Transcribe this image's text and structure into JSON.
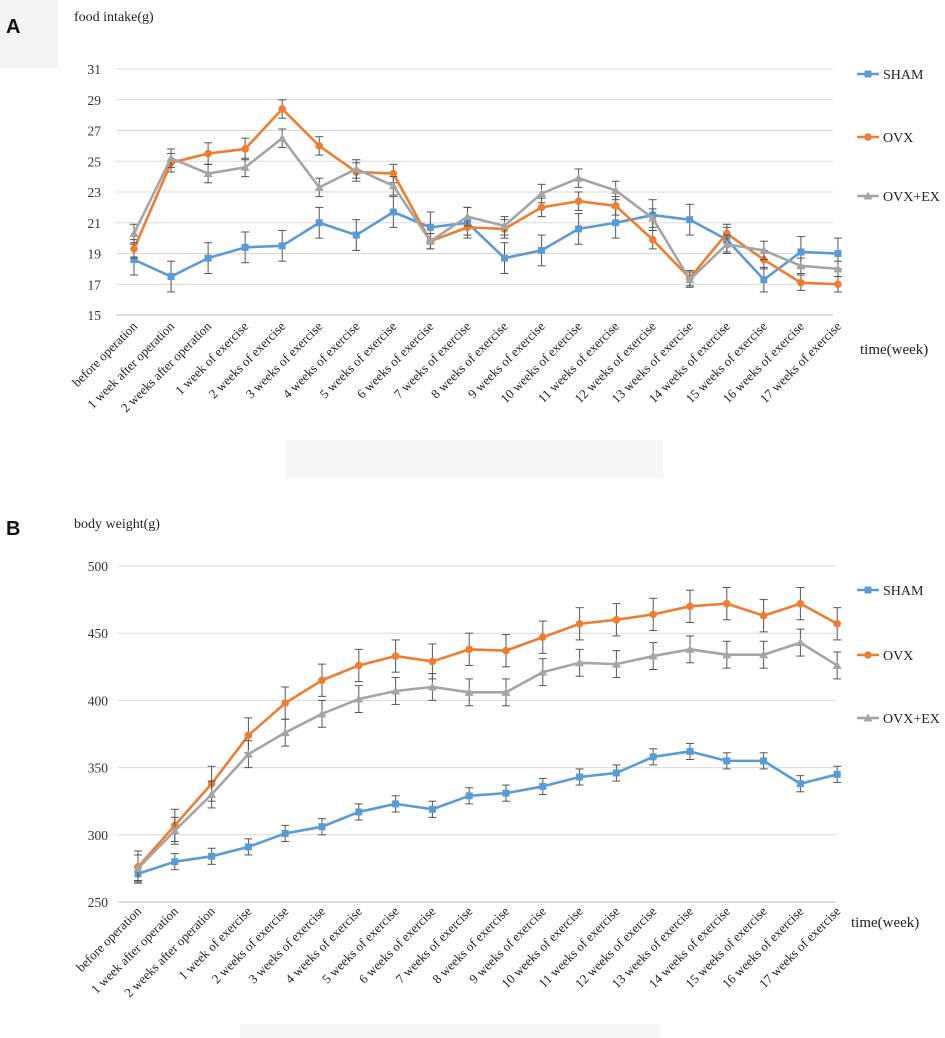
{
  "chart_data": [
    {
      "type": "line",
      "panel_label": "A",
      "title": "",
      "ylabel": "food intake(g)",
      "xlabel": "time(week)",
      "ylim": [
        15,
        31
      ],
      "yticks": [
        15,
        17,
        19,
        21,
        23,
        25,
        27,
        29,
        31
      ],
      "grid": true,
      "legend_position": "right",
      "categories": [
        "before operation",
        "1 week after operation",
        "2 weeks after operation",
        "1 week of exercise",
        "2 weeks  of exercise",
        "3 weeks  of exercise",
        "4 weeks  of exercise",
        "5 weeks  of exercise",
        "6 weeks  of exercise",
        "7 weeks  of exercise",
        "8 weeks  of exercise",
        "9 weeks  of exercise",
        "10 weeks  of exercise",
        "11 weeks  of exercise",
        "12 weeks  of exercise",
        "13 weeks  of exercise",
        "14 weeks  of exercise",
        "15 weeks  of exercise",
        "16 weeks  of exercise",
        "17 weeks  of exercise"
      ],
      "series": [
        {
          "name": "SHAM",
          "color": "#5B9BD5",
          "marker": "square",
          "values": [
            18.6,
            17.5,
            18.7,
            19.4,
            19.5,
            21.0,
            20.2,
            21.7,
            20.7,
            21.0,
            18.7,
            19.2,
            20.6,
            21.0,
            21.5,
            21.2,
            19.9,
            17.3,
            19.1,
            19.0
          ],
          "errors": [
            1.0,
            1.0,
            1.0,
            1.0,
            1.0,
            1.0,
            1.0,
            1.0,
            1.0,
            1.0,
            1.0,
            1.0,
            1.0,
            1.0,
            1.0,
            1.0,
            0.8,
            0.8,
            1.0,
            1.0
          ]
        },
        {
          "name": "OVX",
          "color": "#ED7D31",
          "marker": "circle",
          "values": [
            19.3,
            24.9,
            25.5,
            25.8,
            28.4,
            26.0,
            24.3,
            24.2,
            19.8,
            20.7,
            20.6,
            22.0,
            22.4,
            22.1,
            19.9,
            17.4,
            20.3,
            18.6,
            17.1,
            17.0
          ],
          "errors": [
            0.6,
            0.6,
            0.7,
            0.7,
            0.6,
            0.6,
            0.6,
            0.6,
            0.5,
            0.5,
            0.6,
            0.6,
            0.6,
            0.6,
            0.6,
            0.5,
            0.6,
            0.6,
            0.5,
            0.5
          ]
        },
        {
          "name": "OVX+EX",
          "color": "#A5A5A5",
          "marker": "triangle",
          "values": [
            20.3,
            25.2,
            24.2,
            24.6,
            26.5,
            23.3,
            24.5,
            23.4,
            19.8,
            21.4,
            20.8,
            22.9,
            23.9,
            23.1,
            21.3,
            17.3,
            19.6,
            19.2,
            18.2,
            18.0
          ],
          "errors": [
            0.6,
            0.6,
            0.6,
            0.6,
            0.6,
            0.6,
            0.6,
            0.6,
            0.5,
            0.6,
            0.6,
            0.6,
            0.6,
            0.6,
            0.6,
            0.5,
            0.6,
            0.6,
            0.5,
            0.5
          ]
        }
      ]
    },
    {
      "type": "line",
      "panel_label": "B",
      "title": "",
      "ylabel": "body weight(g)",
      "xlabel": "time(week)",
      "ylim": [
        250,
        500
      ],
      "yticks": [
        250,
        300,
        350,
        400,
        450,
        500
      ],
      "grid": true,
      "legend_position": "right",
      "categories": [
        "before operation",
        "1 week after operation",
        "2 weeks after operation",
        "1 week of exercise",
        "2 weeks  of exercise",
        "3 weeks  of exercise",
        "4 weeks  of exercise",
        "5 weeks  of exercise",
        "6 weeks  of exercise",
        "7 weeks  of exercise",
        "8 weeks  of exercise",
        "9 weeks  of exercise",
        "10 weeks  of exercise",
        "11 weeks  of exercise",
        "12 weeks  of exercise",
        "13 weeks  of exercise",
        "14 weeks  of exercise",
        "15 weeks  of exercise",
        "16 weeks  of exercise",
        "17 weeks  of exercise"
      ],
      "series": [
        {
          "name": "SHAM",
          "color": "#5B9BD5",
          "marker": "square",
          "values": [
            271,
            280,
            284,
            291,
            301,
            306,
            317,
            323,
            319,
            329,
            331,
            336,
            343,
            346,
            358,
            362,
            355,
            355,
            338,
            345
          ],
          "errors": [
            5,
            6,
            6,
            6,
            6,
            6,
            6,
            6,
            6,
            6,
            6,
            6,
            6,
            6,
            6,
            6,
            6,
            6,
            6,
            6
          ]
        },
        {
          "name": "OVX",
          "color": "#ED7D31",
          "marker": "circle",
          "values": [
            276,
            307,
            338,
            374,
            398,
            415,
            426,
            433,
            429,
            438,
            437,
            447,
            457,
            460,
            464,
            470,
            472,
            463,
            472,
            457
          ],
          "errors": [
            12,
            12,
            13,
            13,
            12,
            12,
            12,
            12,
            13,
            12,
            12,
            12,
            12,
            12,
            12,
            12,
            12,
            12,
            12,
            12
          ]
        },
        {
          "name": "OVX+EX",
          "color": "#A5A5A5",
          "marker": "triangle",
          "values": [
            275,
            303,
            330,
            360,
            376,
            390,
            401,
            407,
            410,
            406,
            406,
            421,
            428,
            427,
            433,
            438,
            434,
            434,
            443,
            426
          ],
          "errors": [
            10,
            10,
            10,
            10,
            10,
            10,
            10,
            10,
            10,
            10,
            10,
            10,
            10,
            10,
            10,
            10,
            10,
            10,
            10,
            10
          ]
        }
      ]
    }
  ]
}
